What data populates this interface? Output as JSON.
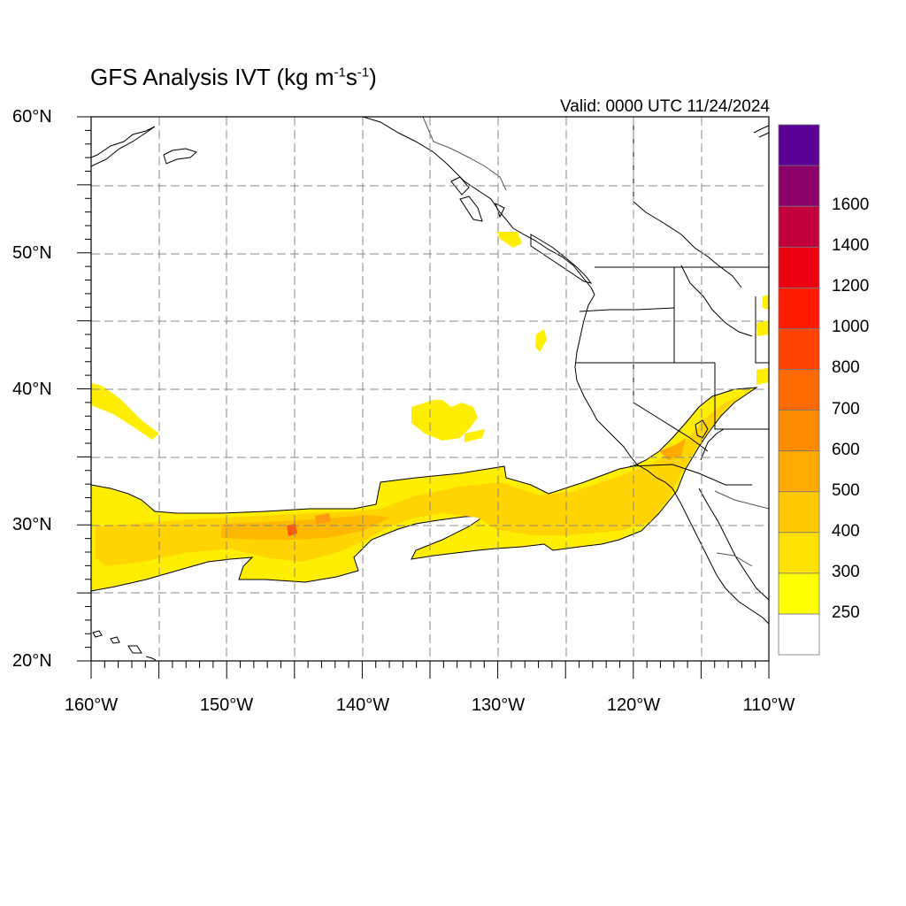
{
  "title": {
    "text": "GFS Analysis IVT (kg m",
    "exp1": "-1",
    "mid": "s",
    "exp2": "-1",
    "close": ")"
  },
  "valid_time": "Valid: 0000 UTC 11/24/2024",
  "lat_labels": [
    "60°N",
    "50°N",
    "40°N",
    "30°N",
    "20°N"
  ],
  "lon_labels": [
    "160°W",
    "150°W",
    "140°W",
    "130°W",
    "120°W",
    "110°W"
  ],
  "colorbar": {
    "levels": [
      "250",
      "300",
      "400",
      "500",
      "600",
      "700",
      "800",
      "1000",
      "1200",
      "1400",
      "1600"
    ],
    "colors": [
      "#ffffff",
      "#ffff00",
      "#ffe000",
      "#ffc800",
      "#ffaa00",
      "#ff8c00",
      "#ff6a00",
      "#ff4400",
      "#ff1a00",
      "#ec0010",
      "#c4003c",
      "#8c006a",
      "#5a0096"
    ]
  },
  "colors": {
    "ivt_low": "#ffee00",
    "ivt_mid": "#ffd400",
    "ivt_high": "#ff9a10",
    "ivt_peak": "#ff3800",
    "grid": "#888888",
    "coast": "#000000"
  }
}
